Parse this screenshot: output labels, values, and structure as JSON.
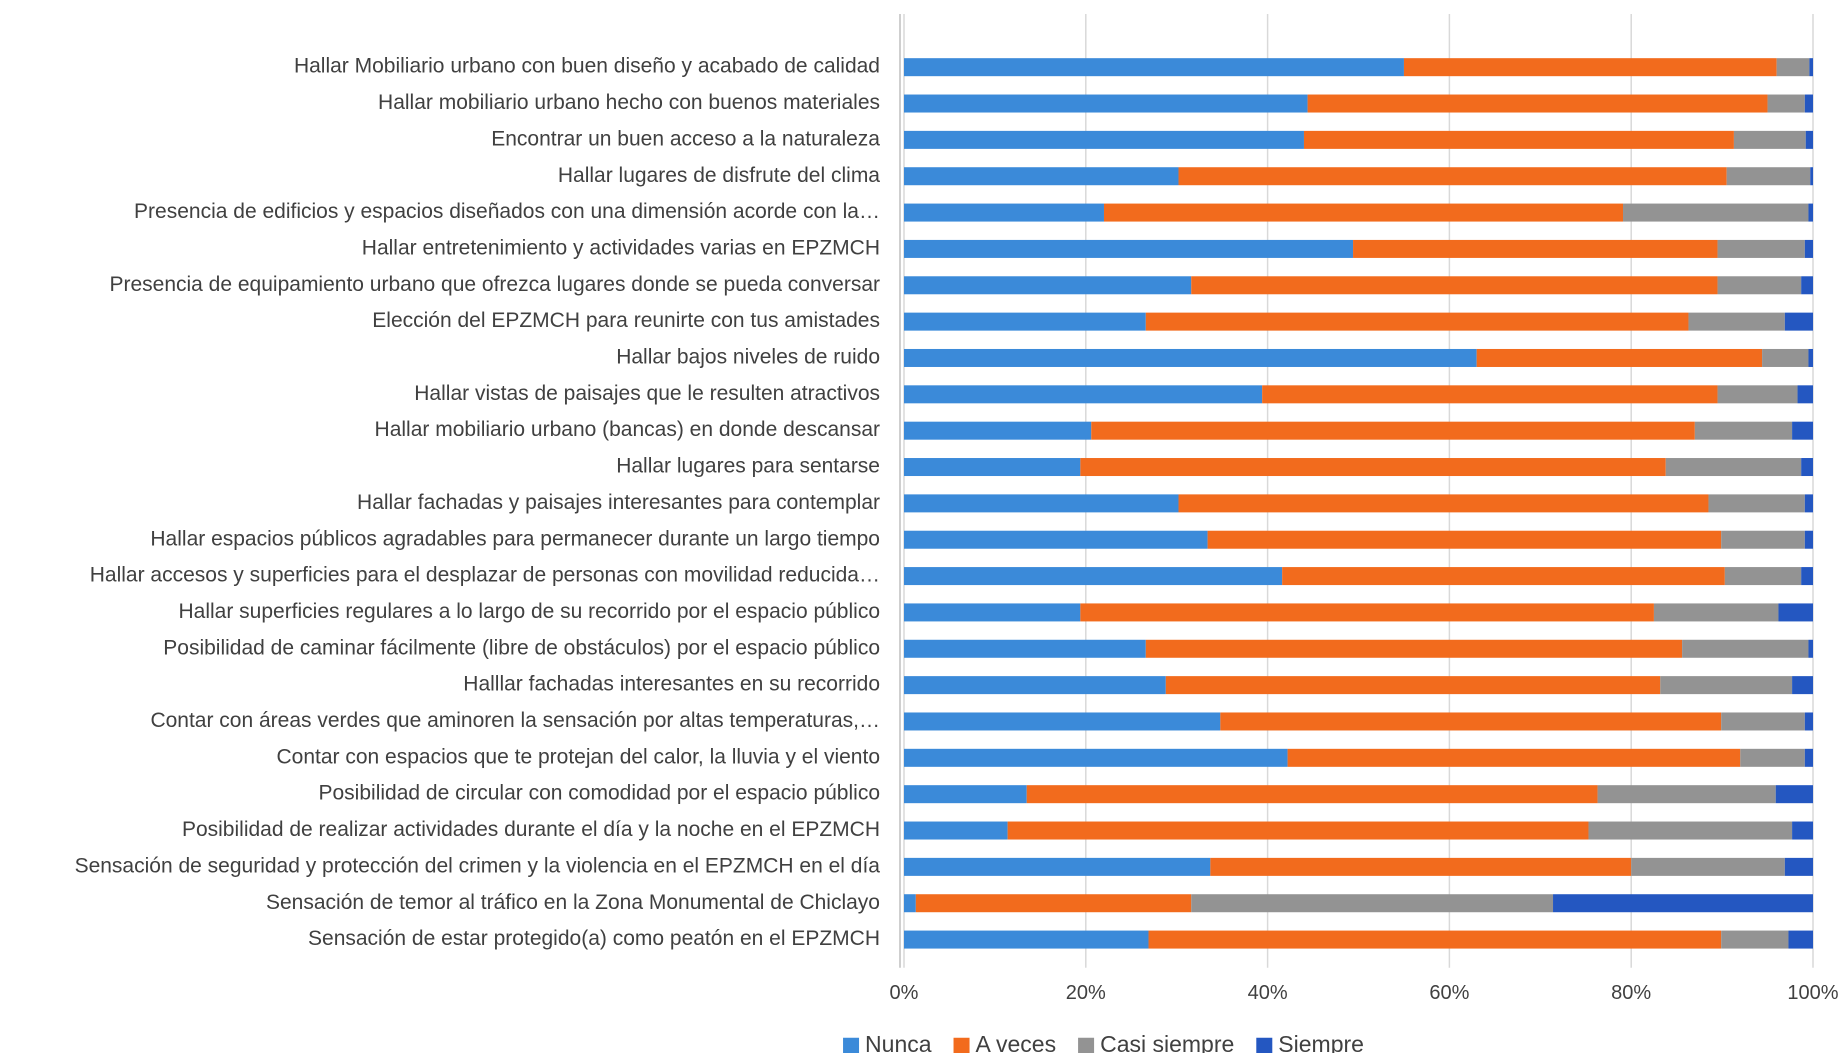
{
  "chart_data": {
    "type": "stacked_barh",
    "categories": [
      "Hallar Mobiliario urbano con buen diseño y acabado de calidad",
      "Hallar mobiliario urbano hecho con buenos materiales",
      "Encontrar un buen acceso a la naturaleza",
      "Hallar lugares de disfrute del clima",
      "Presencia de edificios y espacios diseñados con una dimensión acorde con la…",
      "Hallar entretenimiento y actividades varias en EPZMCH",
      "Presencia de equipamiento urbano que ofrezca lugares donde se pueda conversar",
      "Elección del EPZMCH para reunirte con tus amistades",
      "Hallar bajos niveles de ruido",
      "Hallar vistas de paisajes que le resulten atractivos",
      "Hallar mobiliario urbano (bancas) en donde descansar",
      "Hallar lugares para sentarse",
      "Hallar fachadas y paisajes interesantes para contemplar",
      "Hallar espacios públicos agradables para permanecer durante un largo tiempo",
      "Hallar accesos y superficies para el desplazar de personas con movilidad reducida…",
      "Hallar superficies regulares a lo largo de su recorrido por el espacio público",
      "Posibilidad de caminar fácilmente (libre de obstáculos) por el espacio público",
      "Halllar fachadas interesantes en su recorrido",
      "Contar con áreas verdes que aminoren la sensación por altas temperaturas,…",
      "Contar con espacios que te protejan del calor, la lluvia y el viento",
      "Posibilidad de circular con comodidad por el espacio público",
      "Posibilidad de realizar actividades durante el día y la noche en el EPZMCH",
      "Sensación de seguridad y protección del crimen y la violencia en el EPZMCH en el día",
      "Sensación de temor al tráfico en la Zona Monumental de Chiclayo",
      "Sensación de estar protegido(a) como peatón en el EPZMCH"
    ],
    "series": [
      {
        "name": "Nunca",
        "color": "#3b8ad9",
        "values": [
          55,
          44.4,
          44,
          30.2,
          22,
          49.4,
          31.6,
          26.6,
          63,
          39.4,
          20.6,
          19.4,
          30.2,
          33.4,
          41.6,
          19.4,
          26.6,
          28.8,
          34.8,
          42.2,
          13.5,
          11.4,
          33.7,
          1.3,
          26.9
        ]
      },
      {
        "name": "A veces",
        "color": "#f26b1d",
        "values": [
          41,
          50.6,
          47.3,
          60.3,
          57.1,
          40.1,
          57.9,
          59.7,
          31.4,
          50.1,
          66.4,
          64.4,
          58.3,
          56.5,
          48.7,
          63.1,
          59,
          54.4,
          55.1,
          49.8,
          62.8,
          63.9,
          46.3,
          30.3,
          63
        ]
      },
      {
        "name": "Casi siempre",
        "color": "#939393",
        "values": [
          3.6,
          4.1,
          7.9,
          9.2,
          20.4,
          9.6,
          9.2,
          10.6,
          5.1,
          8.8,
          10.7,
          14.9,
          10.6,
          9.2,
          8.4,
          13.7,
          13.9,
          14.5,
          9.2,
          7.1,
          19.6,
          22.4,
          16.9,
          39.8,
          7.4
        ]
      },
      {
        "name": "Siempre",
        "color": "#2457c1",
        "values": [
          0.4,
          0.9,
          0.8,
          0.3,
          0.5,
          0.9,
          1.3,
          3.1,
          0.5,
          1.7,
          2.3,
          1.3,
          0.9,
          0.9,
          1.3,
          3.8,
          0.5,
          2.3,
          0.9,
          0.9,
          4.1,
          2.3,
          3.1,
          28.6,
          2.7
        ]
      }
    ],
    "xlim": [
      0,
      100
    ],
    "xticks": [
      {
        "value": 0,
        "label": "0%"
      },
      {
        "value": 20,
        "label": "20%"
      },
      {
        "value": 40,
        "label": "40%"
      },
      {
        "value": 60,
        "label": "60%"
      },
      {
        "value": 80,
        "label": "80%"
      },
      {
        "value": 100,
        "label": "100%"
      }
    ],
    "grid": true,
    "legend": "bottom"
  }
}
